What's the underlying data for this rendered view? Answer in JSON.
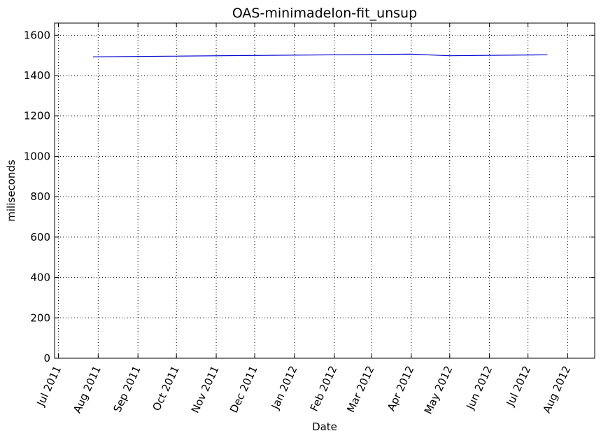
{
  "chart_data": {
    "type": "line",
    "title": "OAS-minimadelon-fit_unsup",
    "xlabel": "Date",
    "ylabel": "miliseconds",
    "xlim": [
      "2011-06-28",
      "2012-08-22"
    ],
    "ylim": [
      0,
      1660
    ],
    "grid": true,
    "x_ticks": [
      {
        "date": "2011-07-01",
        "label": "Jul 2011"
      },
      {
        "date": "2011-08-01",
        "label": "Aug 2011"
      },
      {
        "date": "2011-09-01",
        "label": "Sep 2011"
      },
      {
        "date": "2011-10-01",
        "label": "Oct 2011"
      },
      {
        "date": "2011-11-01",
        "label": "Nov 2011"
      },
      {
        "date": "2011-12-01",
        "label": "Dec 2011"
      },
      {
        "date": "2012-01-01",
        "label": "Jan 2012"
      },
      {
        "date": "2012-02-01",
        "label": "Feb 2012"
      },
      {
        "date": "2012-03-01",
        "label": "Mar 2012"
      },
      {
        "date": "2012-04-01",
        "label": "Apr 2012"
      },
      {
        "date": "2012-05-01",
        "label": "May 2012"
      },
      {
        "date": "2012-06-01",
        "label": "Jun 2012"
      },
      {
        "date": "2012-07-01",
        "label": "Jul 2012"
      },
      {
        "date": "2012-08-01",
        "label": "Aug 2012"
      }
    ],
    "y_ticks": [
      0,
      200,
      400,
      600,
      800,
      1000,
      1200,
      1400,
      1600
    ],
    "series": [
      {
        "color": "#0000cc",
        "x": [
          "2011-07-28",
          "2012-04-01",
          "2012-05-01",
          "2012-07-16"
        ],
        "y": [
          1493,
          1506,
          1498,
          1503
        ]
      }
    ]
  }
}
